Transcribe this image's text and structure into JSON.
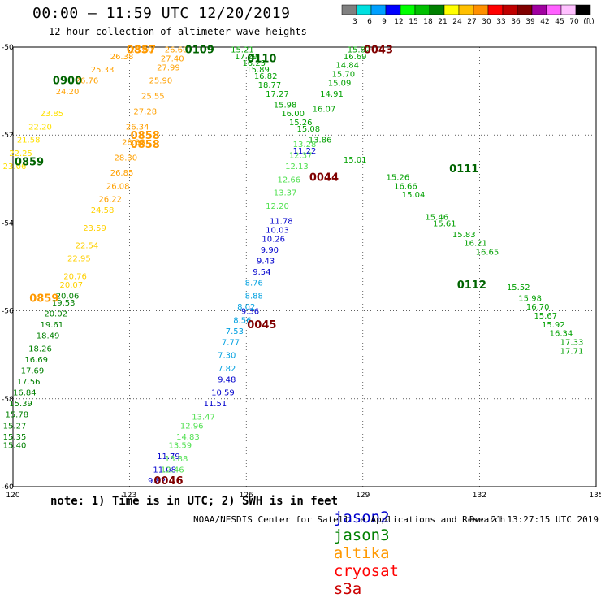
{
  "header": {
    "title": "00:00 – 11:59 UTC 12/20/2019",
    "subtitle": "12 hour collection of altimeter wave heights"
  },
  "legend": {
    "values": [
      "3",
      "6",
      "9",
      "12",
      "15",
      "18",
      "21",
      "24",
      "27",
      "30",
      "33",
      "36",
      "39",
      "42",
      "45",
      "70",
      "(ft)"
    ],
    "colors": [
      "#808080",
      "#00e0e0",
      "#00a0ff",
      "#0000ff",
      "#00ff00",
      "#00c000",
      "#008000",
      "#ffff00",
      "#ffc000",
      "#ff9000",
      "#ff0000",
      "#c00000",
      "#800000",
      "#a000a0",
      "#ff60ff",
      "#ffc0ff",
      "#000000"
    ]
  },
  "footer": {
    "note": "note: 1) Time is in UTC; 2) SWH is in feet",
    "satellites": [
      {
        "name": "jason2",
        "color": "#0000cc"
      },
      {
        "name": "jason3",
        "color": "#008000"
      },
      {
        "name": "altika",
        "color": "#ff9900"
      },
      {
        "name": "cryosat",
        "color": "#ff0000"
      },
      {
        "name": "s3a",
        "color": "#cc0000"
      }
    ],
    "credit": "NOAA/NESDIS Center for Satellite Applications and Research",
    "timestamp": "Dec 21 13:27:15 UTC 2019"
  },
  "chart_data": {
    "type": "scatter",
    "title": "00:00 – 11:59 UTC 12/20/2019",
    "xlabel": "",
    "ylabel": "",
    "xlim": [
      120,
      135
    ],
    "ylim": [
      -60,
      -50
    ],
    "xticks": [
      120,
      123,
      126,
      129,
      132,
      135
    ],
    "yticks": [
      -50,
      -52,
      -54,
      -56,
      -58,
      -60
    ],
    "grid": true,
    "time_labels": [
      {
        "text": "0109",
        "x": 124.8,
        "y": -50.05,
        "color": "#006400"
      },
      {
        "text": "0110",
        "x": 126.4,
        "y": -50.25,
        "color": "#006400"
      },
      {
        "text": "0900",
        "x": 121.4,
        "y": -50.75,
        "color": "#006400"
      },
      {
        "text": "0859",
        "x": 120.0,
        "y": -52.6,
        "color": "#006400"
      },
      {
        "text": "0111",
        "x": 131.6,
        "y": -52.75,
        "color": "#006400"
      },
      {
        "text": "0112",
        "x": 131.8,
        "y": -55.4,
        "color": "#006400"
      },
      {
        "text": "0857",
        "x": 123.3,
        "y": -50.05,
        "color": "#ff9900"
      },
      {
        "text": "0858",
        "x": 123.4,
        "y": -52.0,
        "color": "#ff9900"
      },
      {
        "text": "0858",
        "x": 123.4,
        "y": -52.2,
        "color": "#ff9900"
      },
      {
        "text": "0859",
        "x": 120.8,
        "y": -55.7,
        "color": "#ff9900"
      },
      {
        "text": "0043",
        "x": 129.4,
        "y": -50.05,
        "color": "#800000"
      },
      {
        "text": "0044",
        "x": 128.0,
        "y": -52.95,
        "color": "#800000"
      },
      {
        "text": "0045",
        "x": 126.4,
        "y": -56.3,
        "color": "#800000"
      },
      {
        "text": "0046",
        "x": 124.0,
        "y": -59.85,
        "color": "#800000"
      }
    ],
    "tracks": [
      {
        "name": "jason3 descending",
        "color": "#00a000",
        "points": [
          {
            "x": 125.9,
            "y": -50.05,
            "v": "15.21"
          },
          {
            "x": 126.0,
            "y": -50.2,
            "v": "17.29"
          },
          {
            "x": 126.2,
            "y": -50.35,
            "v": "16.25"
          },
          {
            "x": 126.3,
            "y": -50.5,
            "v": "15.89"
          },
          {
            "x": 126.5,
            "y": -50.65,
            "v": "16.82"
          },
          {
            "x": 126.6,
            "y": -50.85,
            "v": "18.77"
          },
          {
            "x": 126.8,
            "y": -51.05,
            "v": "17.27"
          },
          {
            "x": 127.0,
            "y": -51.3,
            "v": "15.98"
          },
          {
            "x": 127.2,
            "y": -51.5,
            "v": "16.00"
          },
          {
            "x": 127.4,
            "y": -51.7,
            "v": "15.26"
          },
          {
            "x": 127.6,
            "y": -51.85,
            "v": "15.08"
          },
          {
            "x": 128.8,
            "y": -52.55,
            "v": "15.01"
          },
          {
            "x": 129.9,
            "y": -52.95,
            "v": "15.26"
          },
          {
            "x": 130.1,
            "y": -53.15,
            "v": "16.66"
          },
          {
            "x": 130.3,
            "y": -53.35,
            "v": "15.04"
          },
          {
            "x": 130.9,
            "y": -53.85,
            "v": "15.46"
          },
          {
            "x": 131.1,
            "y": -54.0,
            "v": "15.61"
          },
          {
            "x": 131.6,
            "y": -54.25,
            "v": "15.83"
          },
          {
            "x": 131.9,
            "y": -54.45,
            "v": "16.21"
          },
          {
            "x": 132.2,
            "y": -54.65,
            "v": "16.65"
          },
          {
            "x": 133.0,
            "y": -55.45,
            "v": "15.52"
          },
          {
            "x": 133.3,
            "y": -55.7,
            "v": "15.98"
          },
          {
            "x": 133.5,
            "y": -55.9,
            "v": "16.70"
          },
          {
            "x": 133.7,
            "y": -56.1,
            "v": "15.67"
          },
          {
            "x": 133.9,
            "y": -56.3,
            "v": "15.92"
          },
          {
            "x": 134.1,
            "y": -56.5,
            "v": "16.34"
          },
          {
            "x": 134.4,
            "y": -56.7,
            "v": "17.33"
          },
          {
            "x": 134.6,
            "y": -56.9,
            "v": "17.71"
          }
        ]
      },
      {
        "name": "jason3 ascending",
        "color": "#00a000",
        "points": [
          {
            "x": 128.9,
            "y": -50.05,
            "v": "15.82"
          },
          {
            "x": 128.8,
            "y": -50.2,
            "v": "16.69"
          },
          {
            "x": 128.6,
            "y": -50.4,
            "v": "14.84"
          },
          {
            "x": 128.5,
            "y": -50.6,
            "v": "15.70"
          },
          {
            "x": 128.4,
            "y": -50.8,
            "v": "15.09"
          },
          {
            "x": 128.2,
            "y": -51.05,
            "v": "14.91"
          },
          {
            "x": 128.0,
            "y": -51.4,
            "v": "16.07"
          },
          {
            "x": 127.9,
            "y": -52.1,
            "v": "13.86"
          }
        ]
      },
      {
        "name": "jason2 / jason3 (light)",
        "color": "#50e050",
        "points": [
          {
            "x": 127.4,
            "y": -52.45,
            "v": "12.37"
          },
          {
            "x": 127.3,
            "y": -52.7,
            "v": "12.13"
          },
          {
            "x": 127.1,
            "y": -53.0,
            "v": "12.66"
          },
          {
            "x": 127.0,
            "y": -53.3,
            "v": "13.37"
          },
          {
            "x": 126.8,
            "y": -53.6,
            "v": "12.20"
          },
          {
            "x": 127.5,
            "y": -52.2,
            "v": "13.28"
          }
        ]
      },
      {
        "name": "jason2",
        "color": "#0000cc",
        "points": [
          {
            "x": 127.5,
            "y": -52.35,
            "v": "11.22"
          },
          {
            "x": 126.9,
            "y": -53.95,
            "v": "11.78"
          },
          {
            "x": 126.8,
            "y": -54.15,
            "v": "10.03"
          },
          {
            "x": 126.7,
            "y": -54.35,
            "v": "10.26"
          },
          {
            "x": 126.6,
            "y": -54.6,
            "v": "9.90"
          },
          {
            "x": 126.5,
            "y": -54.85,
            "v": "9.43"
          },
          {
            "x": 126.4,
            "y": -55.1,
            "v": "9.54"
          },
          {
            "x": 126.1,
            "y": -56.0,
            "v": "9.36"
          },
          {
            "x": 125.5,
            "y": -57.55,
            "v": "9.48"
          },
          {
            "x": 125.4,
            "y": -57.85,
            "v": "10.59"
          },
          {
            "x": 125.2,
            "y": -58.1,
            "v": "11.51"
          },
          {
            "x": 124.0,
            "y": -59.3,
            "v": "11.79"
          },
          {
            "x": 123.9,
            "y": -59.6,
            "v": "11.08"
          },
          {
            "x": 123.7,
            "y": -59.85,
            "v": "9.82"
          }
        ]
      },
      {
        "name": "jason2 (cyan)",
        "color": "#00a0e0",
        "points": [
          {
            "x": 126.2,
            "y": -55.35,
            "v": "8.76"
          },
          {
            "x": 126.2,
            "y": -55.65,
            "v": "8.88"
          },
          {
            "x": 126.0,
            "y": -55.9,
            "v": "8.02"
          },
          {
            "x": 125.9,
            "y": -56.2,
            "v": "8.56"
          },
          {
            "x": 125.7,
            "y": -56.45,
            "v": "7.53"
          },
          {
            "x": 125.6,
            "y": -56.7,
            "v": "7.77"
          },
          {
            "x": 125.5,
            "y": -57.0,
            "v": "7.30"
          },
          {
            "x": 125.5,
            "y": -57.3,
            "v": "7.82"
          }
        ]
      },
      {
        "name": "jason2 (light green)",
        "color": "#50e050",
        "points": [
          {
            "x": 124.9,
            "y": -58.4,
            "v": "13.47"
          },
          {
            "x": 124.6,
            "y": -58.6,
            "v": "12.96"
          },
          {
            "x": 124.5,
            "y": -58.85,
            "v": "14.83"
          },
          {
            "x": 124.3,
            "y": -59.05,
            "v": "13.59"
          },
          {
            "x": 124.2,
            "y": -59.35,
            "v": "13.88"
          },
          {
            "x": 124.1,
            "y": -59.6,
            "v": "12.46"
          }
        ]
      },
      {
        "name": "altika",
        "color": "#ffa000",
        "points": [
          {
            "x": 124.2,
            "y": -50.05,
            "v": "26.60"
          },
          {
            "x": 124.1,
            "y": -50.25,
            "v": "27.40"
          },
          {
            "x": 124.0,
            "y": -50.45,
            "v": "27.99"
          },
          {
            "x": 123.8,
            "y": -50.75,
            "v": "25.90"
          },
          {
            "x": 123.6,
            "y": -51.1,
            "v": "25.55"
          },
          {
            "x": 123.4,
            "y": -51.45,
            "v": "27.28"
          },
          {
            "x": 123.2,
            "y": -51.8,
            "v": "26.34"
          },
          {
            "x": 123.1,
            "y": -52.15,
            "v": "28.38"
          },
          {
            "x": 122.9,
            "y": -52.5,
            "v": "28.30"
          },
          {
            "x": 122.8,
            "y": -52.85,
            "v": "26.85"
          },
          {
            "x": 122.7,
            "y": -53.15,
            "v": "26.08"
          },
          {
            "x": 122.5,
            "y": -53.45,
            "v": "26.22"
          }
        ]
      },
      {
        "name": "altika (yellow)",
        "color": "#ffd000",
        "points": [
          {
            "x": 122.3,
            "y": -53.7,
            "v": "24.58"
          },
          {
            "x": 122.1,
            "y": -54.1,
            "v": "23.59"
          },
          {
            "x": 121.9,
            "y": -54.5,
            "v": "22.54"
          },
          {
            "x": 121.7,
            "y": -54.8,
            "v": "22.95"
          },
          {
            "x": 121.6,
            "y": -55.2,
            "v": "20.76"
          },
          {
            "x": 121.5,
            "y": -55.4,
            "v": "20.07"
          }
        ]
      },
      {
        "name": "altika (left)",
        "color": "#ffa000",
        "points": [
          {
            "x": 123.3,
            "y": -50.05,
            "v": "26.80"
          },
          {
            "x": 122.8,
            "y": -50.2,
            "v": "26.38"
          },
          {
            "x": 122.3,
            "y": -50.5,
            "v": "25.33"
          },
          {
            "x": 121.9,
            "y": -50.75,
            "v": "26.76"
          },
          {
            "x": 121.4,
            "y": -51.0,
            "v": "24.20"
          }
        ]
      },
      {
        "name": "altika (yellow left)",
        "color": "#ffe000",
        "points": [
          {
            "x": 121.0,
            "y": -51.5,
            "v": "23.85"
          },
          {
            "x": 120.7,
            "y": -51.8,
            "v": "22.20"
          },
          {
            "x": 120.4,
            "y": -52.1,
            "v": "21.58"
          },
          {
            "x": 120.2,
            "y": -52.4,
            "v": "22.25"
          },
          {
            "x": 120.0,
            "y": -52.7,
            "v": "23.06"
          }
        ]
      },
      {
        "name": "altika (green lower)",
        "color": "#008000",
        "points": [
          {
            "x": 121.4,
            "y": -55.65,
            "v": "20.06"
          },
          {
            "x": 121.3,
            "y": -55.8,
            "v": "19.53"
          },
          {
            "x": 121.1,
            "y": -56.05,
            "v": "20.02"
          },
          {
            "x": 121.0,
            "y": -56.3,
            "v": "19.61"
          },
          {
            "x": 120.9,
            "y": -56.55,
            "v": "18.49"
          },
          {
            "x": 120.7,
            "y": -56.85,
            "v": "18.26"
          },
          {
            "x": 120.6,
            "y": -57.1,
            "v": "16.69"
          },
          {
            "x": 120.5,
            "y": -57.35,
            "v": "17.69"
          },
          {
            "x": 120.4,
            "y": -57.6,
            "v": "17.56"
          },
          {
            "x": 120.3,
            "y": -57.85,
            "v": "16.84"
          },
          {
            "x": 120.2,
            "y": -58.1,
            "v": "15.39"
          },
          {
            "x": 120.1,
            "y": -58.35,
            "v": "15.78"
          },
          {
            "x": 120.0,
            "y": -58.6,
            "v": "15.27"
          },
          {
            "x": 119.9,
            "y": -58.85,
            "v": "15.35"
          },
          {
            "x": 119.9,
            "y": -59.05,
            "v": "15.40"
          }
        ]
      }
    ]
  }
}
